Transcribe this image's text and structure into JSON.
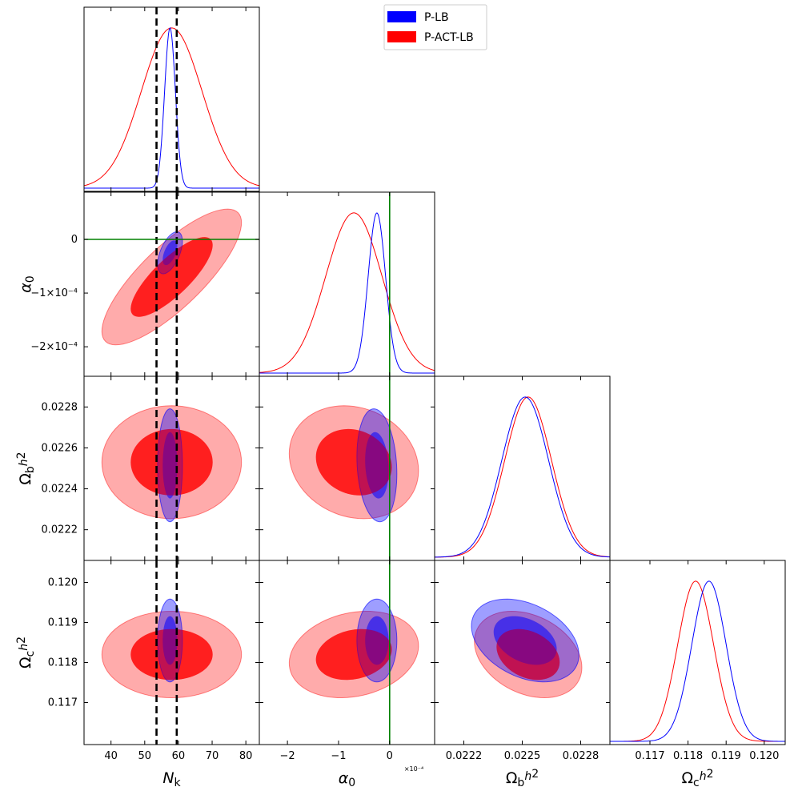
{
  "legend": {
    "entries": [
      {
        "label": "P-LB",
        "color": "#0000ff"
      },
      {
        "label": "P-ACT-LB",
        "color": "#ff0000"
      }
    ]
  },
  "colors": {
    "plb": "#0000ff",
    "pactlb": "#ff0000",
    "reference_line": "#008000",
    "dashed_lines": "#000000"
  },
  "chart_data": {
    "type": "triangle-corner",
    "parameters": [
      {
        "key": "Nk",
        "label": "N_k",
        "range": [
          32,
          84
        ],
        "ticks": [
          40,
          50,
          60,
          70,
          80
        ],
        "tick_labels": [
          "40",
          "50",
          "60",
          "70",
          "80"
        ]
      },
      {
        "key": "alpha0",
        "label": "α_0",
        "range": [
          -0.000255,
          8.8e-05
        ],
        "ticks": [
          -0.0002,
          -0.0001,
          0
        ],
        "tick_labels_x": [
          "−2",
          "−1",
          "0"
        ],
        "tick_labels_y": [
          "−2×10⁻⁴",
          "−1×10⁻⁴",
          "0"
        ],
        "x_multiplier": "×10⁻⁴"
      },
      {
        "key": "Obh2",
        "label": "Ω_b h^2",
        "range": [
          0.02205,
          0.02295
        ],
        "ticks": [
          0.0222,
          0.0224,
          0.0226,
          0.0228
        ],
        "tick_labels_x": [
          "0.0222",
          "0.0225",
          "0.0228"
        ],
        "tick_values_x": [
          0.0222,
          0.0225,
          0.0228
        ],
        "tick_labels_y": [
          "0.0222",
          "0.0224",
          "0.0226",
          "0.0228"
        ]
      },
      {
        "key": "Och2",
        "label": "Ω_c h^2",
        "range": [
          0.11595,
          0.12055
        ],
        "ticks": [
          0.117,
          0.118,
          0.119,
          0.12
        ],
        "tick_labels": [
          "0.117",
          "0.118",
          "0.119",
          "0.120"
        ]
      }
    ],
    "reference_lines": {
      "alpha0": 0,
      "Nk_dashed": [
        53.5,
        59.5
      ]
    },
    "series": [
      {
        "name": "P-LB",
        "color": "#0000ff",
        "means": {
          "Nk": 57.5,
          "alpha0": -2.5e-05,
          "Obh2": 0.022515,
          "Och2": 0.11855
        },
        "sigmas": {
          "Nk": 1.6,
          "alpha0": 1.7e-05,
          "Obh2": 0.00012,
          "Och2": 0.00045
        },
        "correlations": {
          "Nk_alpha0": 0.55,
          "Nk_Obh2": 0.0,
          "Nk_Och2": 0.0,
          "alpha0_Obh2": -0.15,
          "alpha0_Och2": 0.0,
          "Obh2_Och2": -0.35
        }
      },
      {
        "name": "P-ACT-LB",
        "color": "#ff0000",
        "means": {
          "Nk": 58.0,
          "alpha0": -7e-05,
          "Obh2": 0.02253,
          "Och2": 0.1182
        },
        "sigmas": {
          "Nk": 9.0,
          "alpha0": 5.5e-05,
          "Obh2": 0.00012,
          "Och2": 0.00047
        },
        "correlations": {
          "Nk_alpha0": 0.8,
          "Nk_Obh2": 0.0,
          "Nk_Och2": 0.0,
          "alpha0_Obh2": -0.15,
          "alpha0_Och2": 0.2,
          "Obh2_Och2": -0.3
        }
      }
    ],
    "grid": false,
    "legend_position": "top-right"
  }
}
